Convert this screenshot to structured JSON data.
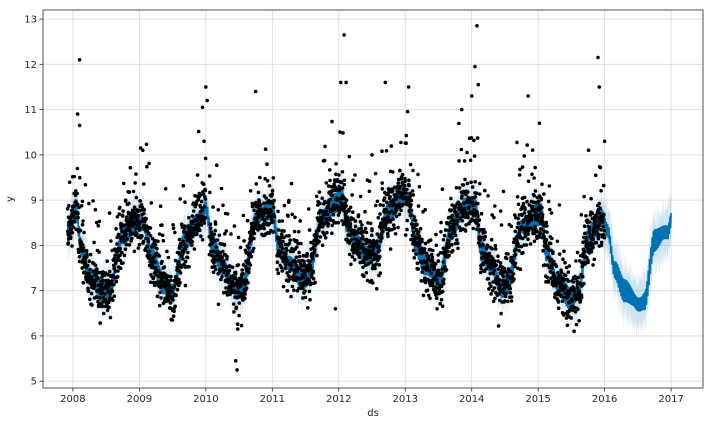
{
  "chart_data": {
    "type": "scatter",
    "title": "",
    "xlabel": "ds",
    "ylabel": "y",
    "xlim": [
      2007.55,
      2017.48
    ],
    "ylim": [
      4.85,
      13.2
    ],
    "xticks": [
      2008,
      2009,
      2010,
      2011,
      2012,
      2013,
      2014,
      2015,
      2016,
      2017
    ],
    "xtick_labels": [
      "2008",
      "2009",
      "2010",
      "2011",
      "2012",
      "2013",
      "2014",
      "2015",
      "2016",
      "2017"
    ],
    "yticks": [
      5,
      6,
      7,
      8,
      9,
      10,
      11,
      12,
      13
    ],
    "ytick_labels": [
      "5",
      "6",
      "7",
      "8",
      "9",
      "10",
      "11",
      "12",
      "13"
    ],
    "grid": true,
    "legend": "none",
    "observed_range": [
      2007.92,
      2016.0
    ],
    "forecast_range": [
      2007.92,
      2017.0
    ],
    "series": [
      {
        "role": "forecast",
        "kind": "line",
        "color": "#0072B2"
      },
      {
        "role": "uncertainty_interval",
        "kind": "band",
        "color": "#0072B2",
        "alpha": 0.2,
        "half_width": 0.55
      },
      {
        "role": "observed",
        "kind": "scatter",
        "color": "#000000"
      }
    ],
    "forecast_knots": {
      "x": [
        2007.92,
        2008.05,
        2008.12,
        2008.25,
        2008.45,
        2008.55,
        2008.75,
        2008.95,
        2009.05,
        2009.2,
        2009.35,
        2009.5,
        2009.7,
        2009.9,
        2010.0,
        2010.1,
        2010.25,
        2010.45,
        2010.55,
        2010.75,
        2011.0,
        2011.1,
        2011.25,
        2011.45,
        2011.55,
        2011.75,
        2011.95,
        2012.05,
        2012.12,
        2012.25,
        2012.45,
        2012.55,
        2012.75,
        2012.95,
        2013.05,
        2013.15,
        2013.3,
        2013.5,
        2013.7,
        2013.92,
        2014.05,
        2014.15,
        2014.3,
        2014.45,
        2014.55,
        2014.75,
        2014.95,
        2015.05,
        2015.12,
        2015.3,
        2015.5,
        2015.6,
        2015.75,
        2015.95,
        2016.05,
        2016.15,
        2016.3,
        2016.5,
        2016.6,
        2016.75,
        2016.95,
        2017.0
      ],
      "y": [
        8.3,
        8.8,
        8.0,
        7.3,
        7.0,
        7.05,
        8.2,
        8.6,
        8.5,
        7.7,
        7.2,
        7.0,
        8.2,
        8.6,
        8.8,
        8.0,
        7.6,
        7.0,
        7.05,
        8.6,
        8.8,
        8.0,
        7.6,
        7.3,
        7.4,
        8.6,
        9.0,
        9.1,
        8.4,
        8.1,
        7.8,
        7.8,
        8.8,
        9.1,
        9.0,
        8.1,
        7.6,
        7.2,
        8.4,
        8.9,
        8.9,
        7.9,
        7.5,
        7.1,
        7.2,
        8.4,
        8.7,
        8.7,
        7.8,
        7.2,
        6.8,
        6.9,
        8.2,
        8.6,
        8.3,
        7.5,
        7.0,
        6.7,
        6.8,
        8.1,
        8.3,
        8.6
      ]
    },
    "observed_outliers": {
      "x": [
        2008.1,
        2008.07,
        2008.1,
        2009.02,
        2009.95,
        2010.0,
        2010.02,
        2010.45,
        2010.47,
        2010.75,
        2012.03,
        2012.08,
        2012.11,
        2012.7,
        2013.05,
        2013.85,
        2014.0,
        2014.05,
        2014.08,
        2014.1,
        2014.85,
        2015.02,
        2015.9,
        2015.92,
        2016.0,
        2011.95,
        2013.48,
        2010.48,
        2012.5
      ],
      "y": [
        12.1,
        10.9,
        10.65,
        10.15,
        11.05,
        11.5,
        11.2,
        5.45,
        5.25,
        11.4,
        11.6,
        12.65,
        11.6,
        11.6,
        11.5,
        11.0,
        11.3,
        11.95,
        12.85,
        11.55,
        11.3,
        10.7,
        12.15,
        11.5,
        10.3,
        6.6,
        6.6,
        6.15,
        10.0
      ]
    }
  }
}
